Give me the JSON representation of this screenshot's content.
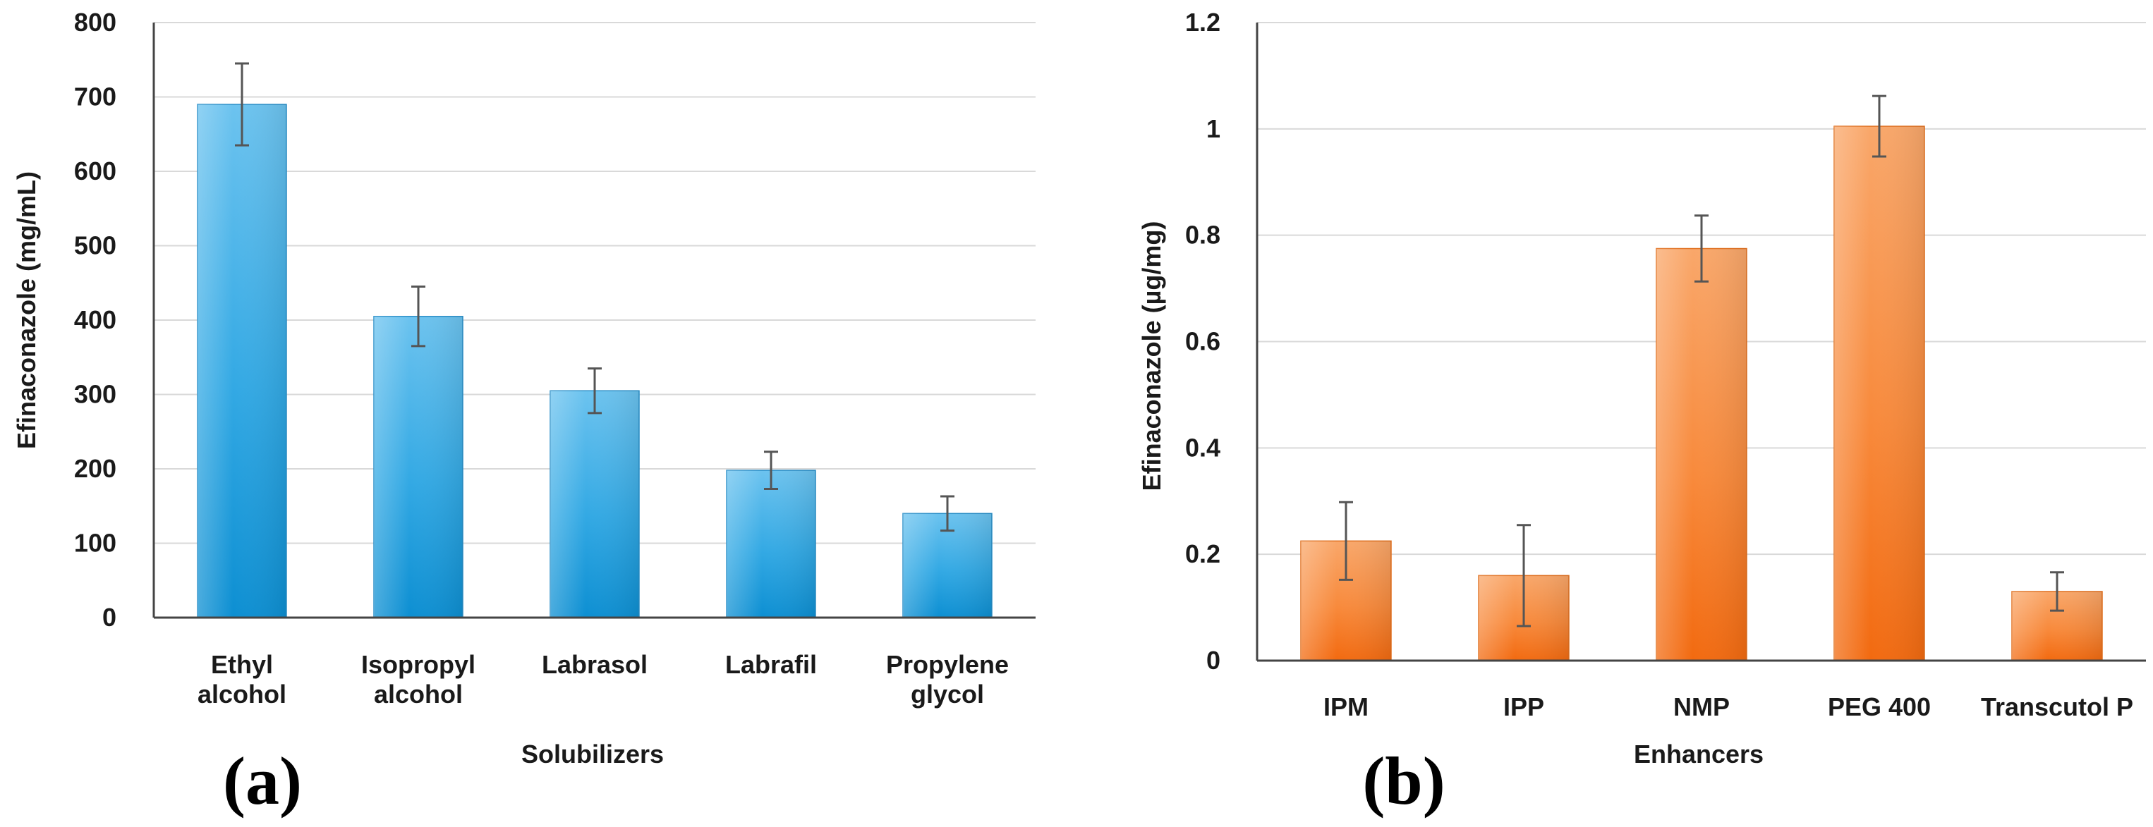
{
  "chart_data": [
    {
      "type": "bar",
      "panel_label": "(a)",
      "title": "",
      "xlabel": "Solubilizers",
      "ylabel": "Efinaconazole  (mg/mL)",
      "ylim": [
        0,
        800
      ],
      "yticks": [
        0,
        100,
        200,
        300,
        400,
        500,
        600,
        700,
        800
      ],
      "grid": true,
      "categories": [
        [
          "Ethyl",
          "alcohol"
        ],
        [
          "Isopropyl",
          "alcohol"
        ],
        [
          "Labrasol"
        ],
        [
          "Labrafil"
        ],
        [
          "Propylene",
          "glycol"
        ]
      ],
      "values": [
        690,
        405,
        305,
        198,
        140
      ],
      "errors": [
        55,
        40,
        30,
        25,
        23
      ],
      "colors": {
        "bar_top": "#6cc3ef",
        "bar_mid": "#33a9e4",
        "bar_bottom": "#0d8fd2",
        "edge": "#2a8fc8",
        "grid": "#d9d9d9",
        "error": "#555555"
      }
    },
    {
      "type": "bar",
      "panel_label": "(b)",
      "title": "",
      "xlabel": "Enhancers",
      "ylabel": "Efinaconazole  (µg/mg)",
      "ylim": [
        0,
        1.2
      ],
      "yticks": [
        0,
        0.2,
        0.4,
        0.6,
        0.8,
        1,
        1.2
      ],
      "grid": true,
      "categories": [
        [
          "IPM"
        ],
        [
          "IPP"
        ],
        [
          "NMP"
        ],
        [
          "PEG 400"
        ],
        [
          "Transcutol P"
        ]
      ],
      "values": [
        0.225,
        0.16,
        0.775,
        1.005,
        0.13
      ],
      "errors": [
        0.073,
        0.095,
        0.062,
        0.057,
        0.036
      ],
      "colors": {
        "bar_top": "#f9a76a",
        "bar_mid": "#f88a3c",
        "bar_bottom": "#f26a10",
        "edge": "#e07020",
        "grid": "#d9d9d9",
        "error": "#555555"
      }
    }
  ]
}
